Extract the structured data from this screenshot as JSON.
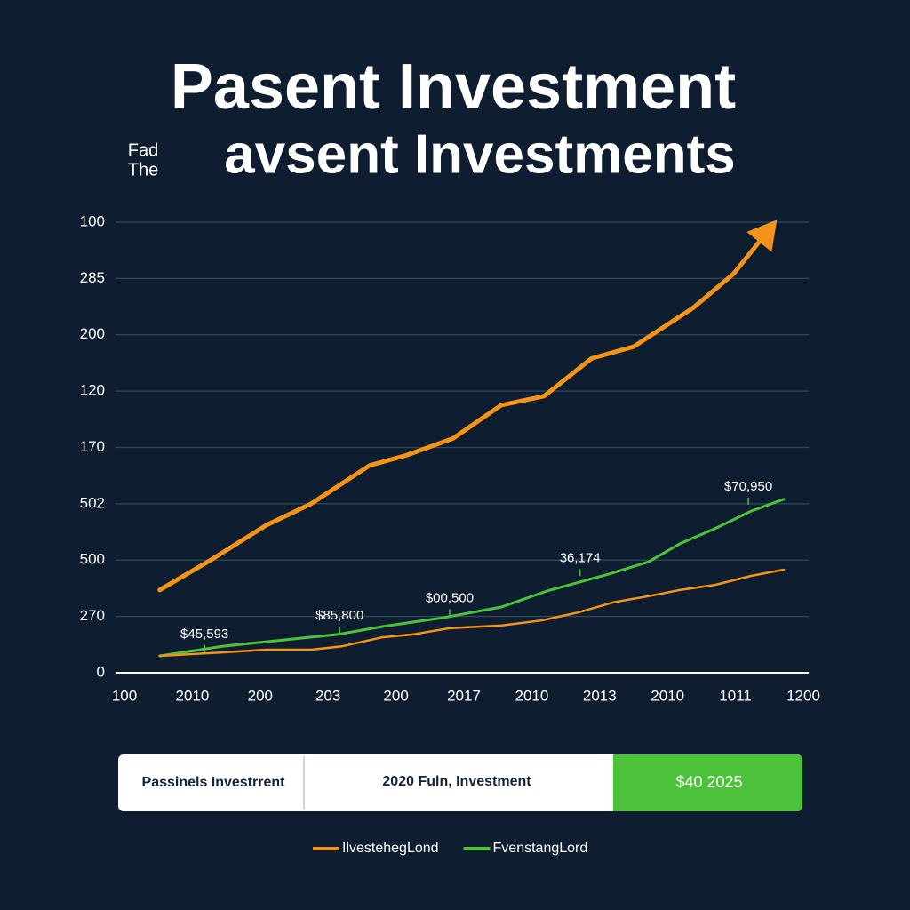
{
  "chart_data": {
    "type": "line",
    "title": "Pasent Investment",
    "subtitle": "avsent Investments",
    "side_note": [
      "Fad",
      "The"
    ],
    "xlim": [
      0,
      10
    ],
    "xticks": [
      {
        "value": 0,
        "label": "100"
      },
      {
        "value": 1,
        "label": "2010"
      },
      {
        "value": 2,
        "label": "200"
      },
      {
        "value": 3,
        "label": "203"
      },
      {
        "value": 4,
        "label": "200"
      },
      {
        "value": 5,
        "label": "2017"
      },
      {
        "value": 6,
        "label": "2010"
      },
      {
        "value": 7,
        "label": "2013"
      },
      {
        "value": 8,
        "label": "2010"
      },
      {
        "value": 9,
        "label": "1011"
      },
      {
        "value": 10,
        "label": "1200"
      }
    ],
    "ylim": [
      0,
      8
    ],
    "yticks": [
      {
        "value": 0,
        "label": "0"
      },
      {
        "value": 1,
        "label": "270"
      },
      {
        "value": 2,
        "label": "500"
      },
      {
        "value": 3,
        "label": "502"
      },
      {
        "value": 4,
        "label": "170"
      },
      {
        "value": 5,
        "label": "120"
      },
      {
        "value": 6,
        "label": "200"
      },
      {
        "value": 7,
        "label": "285"
      },
      {
        "value": 8,
        "label": "100"
      }
    ],
    "grid": true,
    "series": [
      {
        "name": "IlvestehegLond",
        "color": "#f39419",
        "width": 5,
        "arrow": true,
        "x": [
          0.52,
          1.27,
          2.09,
          2.75,
          3.61,
          4.15,
          4.84,
          5.55,
          6.18,
          6.88,
          7.5,
          8.38,
          8.97,
          9.53
        ],
        "values": [
          1.47,
          2.0,
          2.62,
          3.0,
          3.68,
          3.86,
          4.16,
          4.75,
          4.91,
          5.58,
          5.79,
          6.48,
          7.08,
          7.92
        ]
      },
      {
        "name": "FvenstangLord",
        "color": "#4cc23a",
        "width": 3,
        "x": [
          0.52,
          1.44,
          2.09,
          3.14,
          3.8,
          4.71,
          5.56,
          6.22,
          7.13,
          7.72,
          8.18,
          8.7,
          9.23,
          9.71
        ],
        "values": [
          0.3,
          0.47,
          0.55,
          0.68,
          0.82,
          0.98,
          1.17,
          1.45,
          1.75,
          1.97,
          2.29,
          2.56,
          2.87,
          3.08
        ]
      },
      {
        "color": "#f39419",
        "width": 2.5,
        "x": [
          0.52,
          1.44,
          2.09,
          2.75,
          3.21,
          3.8,
          4.25,
          4.78,
          5.56,
          6.15,
          6.68,
          7.2,
          7.72,
          8.18,
          8.7,
          9.23,
          9.71
        ],
        "values": [
          0.3,
          0.36,
          0.41,
          0.41,
          0.47,
          0.63,
          0.68,
          0.79,
          0.84,
          0.93,
          1.07,
          1.25,
          1.36,
          1.47,
          1.56,
          1.72,
          1.83
        ]
      }
    ],
    "annotations": [
      {
        "text": "$45,593",
        "x": 1.18,
        "y": 0.68
      },
      {
        "text": "$85,800",
        "x": 3.17,
        "y": 1.01
      },
      {
        "text": "$00,500",
        "x": 4.79,
        "y": 1.32
      },
      {
        "text": "36,174",
        "x": 6.71,
        "y": 2.03
      },
      {
        "text": "$70,950",
        "x": 9.19,
        "y": 3.3
      }
    ],
    "summary": [
      "Passinels Investrrent",
      "2020 Fuln, Investment",
      "$40 2025"
    ]
  }
}
